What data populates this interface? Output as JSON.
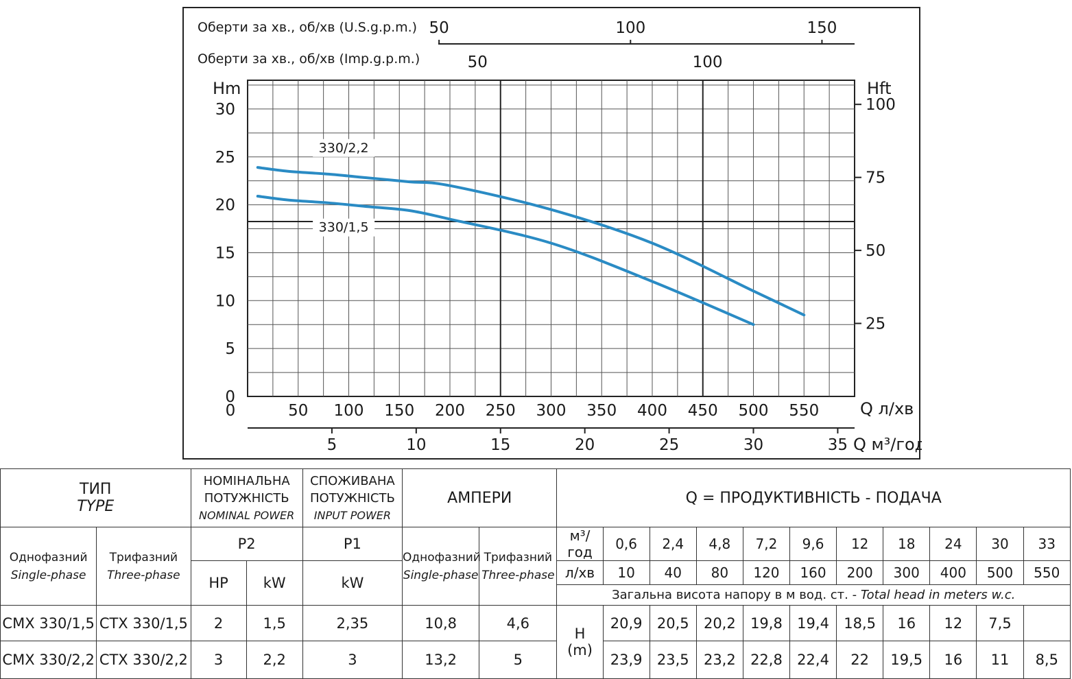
{
  "top_axes": {
    "usgpm_label": "Оберти за хв., об/хв (U.S.g.p.m.)",
    "usgpm_ticks": [
      "50",
      "100",
      "150"
    ],
    "imp_label": "Оберти за хв., об/хв (Imp.g.p.m.)",
    "imp_ticks": [
      "50",
      "100"
    ]
  },
  "chart_data": {
    "type": "line",
    "left_axis": {
      "label": "Hm",
      "ticks": [
        "0",
        "5",
        "10",
        "15",
        "20",
        "25",
        "30"
      ],
      "ylim": [
        0,
        33
      ]
    },
    "right_axis": {
      "label": "Hft",
      "ticks": [
        "25",
        "50",
        "75",
        "100"
      ]
    },
    "x_axis_lmin": {
      "label": "Q л/хв",
      "ticks": [
        "50",
        "100",
        "150",
        "200",
        "250",
        "300",
        "350",
        "400",
        "450",
        "500",
        "550"
      ],
      "xlim": [
        0,
        600
      ]
    },
    "x_axis_m3h": {
      "label": "Q м³/год",
      "ticks": [
        "5",
        "10",
        "15",
        "20",
        "25",
        "30",
        "35"
      ]
    },
    "grid": true,
    "series": [
      {
        "name": "330/2,2",
        "color": "#2a8bc4",
        "x": [
          10,
          40,
          80,
          120,
          160,
          200,
          300,
          400,
          500,
          550
        ],
        "y": [
          23.9,
          23.5,
          23.2,
          22.8,
          22.4,
          22,
          19.5,
          16,
          11,
          8.5
        ]
      },
      {
        "name": "330/1,5",
        "color": "#2a8bc4",
        "x": [
          10,
          40,
          80,
          120,
          160,
          200,
          300,
          400,
          500
        ],
        "y": [
          20.9,
          20.5,
          20.2,
          19.8,
          19.4,
          18.5,
          16,
          12,
          7.5
        ]
      }
    ]
  },
  "table": {
    "type_label": "ТИП",
    "type_label_en": "TYPE",
    "nominal_power": "НОМІНАЛЬНА ПОТУЖНІСТЬ",
    "nominal_power_en": "NOMINAL POWER",
    "input_power": "СПОЖИВАНА ПОТУЖНІСТЬ",
    "input_power_en": "INPUT POWER",
    "amperes": "АМПЕРИ",
    "q_title": "Q = ПРОДУКТИВНІСТЬ - ПОДАЧА",
    "single_phase": "Однофазний",
    "single_phase_en": "Single-phase",
    "three_phase": "Трифазний",
    "three_phase_en": "Three-phase",
    "p2": "P2",
    "p1": "P1",
    "hp": "HP",
    "kw": "kW",
    "m3h_label": "м³/год",
    "lmin_label": "л/хв",
    "m3h_values": [
      "0,6",
      "2,4",
      "4,8",
      "7,2",
      "9,6",
      "12",
      "18",
      "24",
      "30",
      "33"
    ],
    "lmin_values": [
      "10",
      "40",
      "80",
      "120",
      "160",
      "200",
      "300",
      "400",
      "500",
      "550"
    ],
    "head_note": "Загальна висота напору в м вод. ст. - ",
    "head_note_en": "Total head in meters w.c.",
    "h_label": "H",
    "h_unit": "(m)",
    "rows": [
      {
        "single": "CMX 330/1,5",
        "three": "CTX 330/1,5",
        "hp": "2",
        "kw": "1,5",
        "p1": "2,35",
        "amp1": "10,8",
        "amp3": "4,6",
        "h": [
          "20,9",
          "20,5",
          "20,2",
          "19,8",
          "19,4",
          "18,5",
          "16",
          "12",
          "7,5",
          ""
        ]
      },
      {
        "single": "CMX 330/2,2",
        "three": "CTX 330/2,2",
        "hp": "3",
        "kw": "2,2",
        "p1": "3",
        "amp1": "13,2",
        "amp3": "5",
        "h": [
          "23,9",
          "23,5",
          "23,2",
          "22,8",
          "22,4",
          "22",
          "19,5",
          "16",
          "11",
          "8,5"
        ]
      }
    ]
  }
}
